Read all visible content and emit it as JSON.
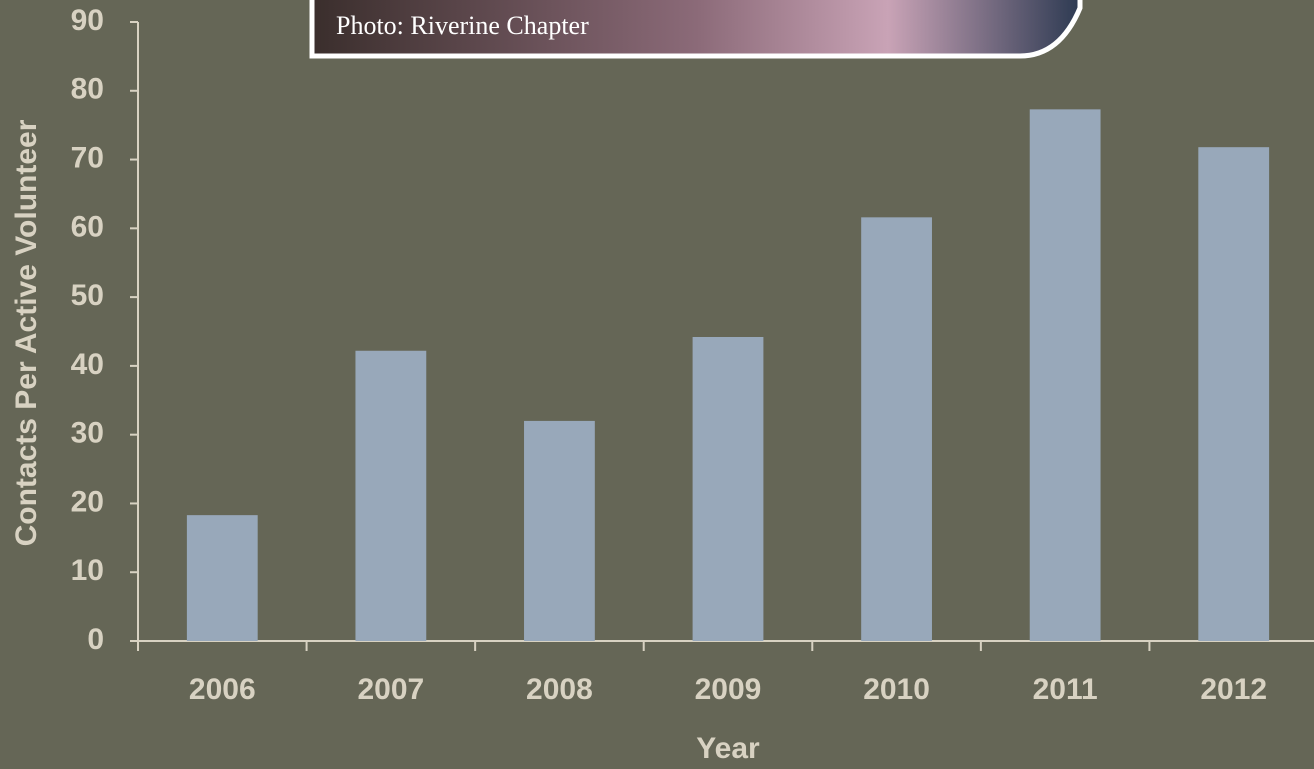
{
  "photo": {
    "caption": "Photo: Riverine Chapter"
  },
  "chart_data": {
    "type": "bar",
    "x_label": "Year",
    "y_label": "Contacts Per Active Volunteer",
    "categories": [
      "2006",
      "2007",
      "2008",
      "2009",
      "2010",
      "2011",
      "2012"
    ],
    "values": [
      18.3,
      42.2,
      32.0,
      44.2,
      61.6,
      77.3,
      71.8
    ],
    "color": "#98a8ba",
    "ylim": [
      0,
      90
    ],
    "yticks": [
      0,
      10,
      20,
      30,
      40,
      50,
      60,
      70,
      80,
      90
    ]
  }
}
